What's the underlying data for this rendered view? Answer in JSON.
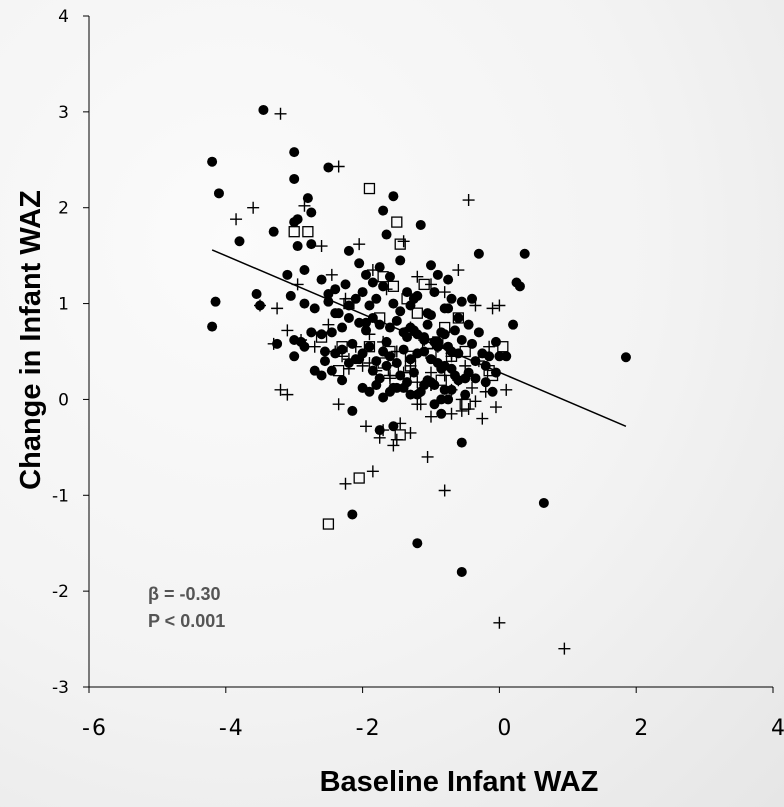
{
  "chart_data": {
    "type": "scatter",
    "title": "",
    "xlabel": "Baseline Infant WAZ",
    "ylabel": "Change in Infant WAZ",
    "xlim": [
      -6,
      4
    ],
    "ylim": [
      -3,
      4
    ],
    "xticks": [
      "-6",
      "-4",
      "-2",
      "0",
      "2",
      "4"
    ],
    "yticks": [
      "-3",
      "-2",
      "-1",
      "0",
      "1",
      "2",
      "3",
      "4"
    ],
    "grid": false,
    "legend": "none",
    "annotation": {
      "beta": "β = -0.30",
      "p": "P < 0.001"
    },
    "regression_line": {
      "x": [
        -4.2,
        1.85
      ],
      "y": [
        1.56,
        -0.28
      ]
    },
    "series": [
      {
        "marker": "filled-circle",
        "color": "#000000",
        "x": [
          -3.45,
          -2.5,
          -3.0,
          -3.0,
          -2.8,
          -2.5,
          -1.7,
          -1.55,
          -4.2,
          -4.1,
          -3.8,
          -2.75,
          -2.95,
          -3.0,
          -2.95,
          -2.75,
          -2.2,
          -2.05,
          -1.65,
          -1.75,
          -1.45,
          -1.15,
          -1.0,
          -0.75,
          -0.4,
          -0.3,
          0.25,
          0.3,
          0.37,
          -3.3,
          -3.1,
          -2.85,
          -2.6,
          -2.4,
          -2.25,
          -2.1,
          -1.95,
          -1.85,
          -1.6,
          -1.35,
          -1.25,
          -0.9,
          -0.75,
          -0.55,
          0.2,
          -3.55,
          -3.5,
          -3.05,
          -2.85,
          -2.7,
          -2.5,
          -2.35,
          -2.2,
          -2.0,
          -1.9,
          -1.8,
          -1.7,
          -1.55,
          -1.45,
          -1.3,
          -1.2,
          -1.05,
          -0.95,
          -0.8,
          -0.7,
          -0.6,
          -0.45,
          -0.3,
          -0.05,
          0.1,
          -4.15,
          -4.2,
          -3.0,
          -2.9,
          -2.75,
          -2.6,
          -2.45,
          -2.3,
          -2.15,
          -2.05,
          -1.95,
          -1.85,
          -1.75,
          -1.65,
          -1.5,
          -1.4,
          -1.3,
          -1.2,
          -1.1,
          -1.0,
          -0.9,
          -0.85,
          -0.75,
          -0.65,
          -0.55,
          -0.4,
          -0.25,
          -0.15,
          0.0,
          -3.25,
          -3.0,
          -2.85,
          -2.55,
          -2.4,
          -2.3,
          -2.1,
          -2.0,
          -1.9,
          -1.8,
          -1.7,
          -1.6,
          -1.5,
          -1.4,
          -1.3,
          -1.2,
          -1.1,
          -1.0,
          -0.9,
          -0.8,
          -0.7,
          -0.6,
          -0.5,
          -0.35,
          -0.2,
          -0.05,
          -2.6,
          -2.45,
          -2.2,
          -2.05,
          -1.85,
          -1.65,
          -1.45,
          -1.25,
          -1.05,
          -0.85,
          -0.65,
          -0.45,
          -0.2,
          -1.75,
          -1.55,
          -1.35,
          -1.15,
          -0.95,
          -0.8,
          -0.6,
          -0.5,
          -0.35,
          -2.0,
          -1.8,
          -1.6,
          -1.4,
          -1.2,
          -1.0,
          -0.85,
          -0.7,
          -1.9,
          -1.7,
          -1.5,
          -1.3,
          -1.1,
          -0.95,
          -0.75,
          -2.7,
          -2.55,
          -2.3,
          -2.15,
          -0.55,
          -0.1,
          -2.15,
          -1.2,
          -0.55,
          0.65,
          1.85,
          -1.75,
          -1.55,
          -0.85,
          -2.4,
          -2.2,
          -1.95,
          -1.6,
          -1.35,
          -1.1,
          -0.9,
          -0.7,
          -1.25,
          -1.05,
          -0.95,
          -0.8
        ],
        "y": [
          3.02,
          2.42,
          2.58,
          2.3,
          2.1,
          1.1,
          1.97,
          2.12,
          2.48,
          2.15,
          1.65,
          1.95,
          1.88,
          1.85,
          1.6,
          1.62,
          1.55,
          1.42,
          1.72,
          1.38,
          1.45,
          1.82,
          1.4,
          1.25,
          1.05,
          1.52,
          1.22,
          1.18,
          1.52,
          1.75,
          1.3,
          1.35,
          1.25,
          1.15,
          1.2,
          1.05,
          1.3,
          1.22,
          1.28,
          1.12,
          1.05,
          1.3,
          0.95,
          1.02,
          0.78,
          1.1,
          0.98,
          1.08,
          1.0,
          0.95,
          1.02,
          0.9,
          0.98,
          1.12,
          0.98,
          1.05,
          1.18,
          1.0,
          0.92,
          0.98,
          1.08,
          0.9,
          1.12,
          0.95,
          1.05,
          0.85,
          0.78,
          0.7,
          0.6,
          0.45,
          1.02,
          0.76,
          0.62,
          0.6,
          0.7,
          0.68,
          0.7,
          0.75,
          0.58,
          0.8,
          0.72,
          0.85,
          0.78,
          0.6,
          0.82,
          0.7,
          0.75,
          0.68,
          0.65,
          0.88,
          0.6,
          0.7,
          0.55,
          0.72,
          0.62,
          0.58,
          0.48,
          0.45,
          0.45,
          0.58,
          0.45,
          0.55,
          0.5,
          0.48,
          0.52,
          0.42,
          0.48,
          0.55,
          0.4,
          0.5,
          0.45,
          0.38,
          0.52,
          0.42,
          0.48,
          0.5,
          0.42,
          0.38,
          0.35,
          0.32,
          0.48,
          0.22,
          0.4,
          0.35,
          0.28,
          0.25,
          0.3,
          0.38,
          0.42,
          0.3,
          0.35,
          0.25,
          0.28,
          0.2,
          0.32,
          0.25,
          0.28,
          0.18,
          0.22,
          0.12,
          0.18,
          0.08,
          0.15,
          0.1,
          0.2,
          0.05,
          0.22,
          0.12,
          0.15,
          0.08,
          0.12,
          0.05,
          0.18,
          0.0,
          0.1,
          0.08,
          0.02,
          0.12,
          0.05,
          0.15,
          -0.05,
          0.0,
          0.3,
          0.4,
          0.2,
          -0.12,
          -0.45,
          0.08,
          -1.2,
          -1.5,
          -1.8,
          -1.08,
          0.44,
          -0.32,
          -0.28,
          -0.15,
          0.9,
          0.85,
          0.8,
          0.75,
          0.65,
          0.62,
          0.55,
          0.5,
          0.72,
          0.78,
          0.6,
          0.68
        ]
      },
      {
        "marker": "open-square",
        "color": "#000000",
        "x": [
          -1.9,
          -1.5,
          -1.45,
          -3.0,
          -2.8,
          -2.2,
          -1.7,
          -1.55,
          -1.35,
          -1.1,
          -0.6,
          -1.75,
          -1.2,
          -0.8,
          -2.6,
          -2.3,
          -1.9,
          -1.6,
          -1.3,
          -1.0,
          -0.7,
          -0.5,
          -0.1,
          -2.35,
          -1.55,
          -0.85,
          0.05,
          -0.15,
          -0.5,
          -1.45,
          -2.05,
          -2.5,
          -1.3,
          -0.9,
          -1.7,
          -1.05
        ],
        "y": [
          2.2,
          1.85,
          1.62,
          1.75,
          1.75,
          1.0,
          1.28,
          1.18,
          1.05,
          1.2,
          0.85,
          0.85,
          0.9,
          0.75,
          0.65,
          0.55,
          0.55,
          0.5,
          0.45,
          0.48,
          0.45,
          0.5,
          0.25,
          0.3,
          0.3,
          0.2,
          0.55,
          0.3,
          -0.05,
          -0.37,
          -0.82,
          -1.3,
          0.35,
          0.6,
          0.38,
          0.58
        ]
      },
      {
        "marker": "plus",
        "color": "#000000",
        "x": [
          -3.2,
          -2.35,
          -3.85,
          -3.6,
          -2.85,
          -2.6,
          -0.45,
          -3.25,
          -3.5,
          -2.95,
          -2.45,
          -2.25,
          -2.05,
          -1.85,
          -1.65,
          -1.4,
          -1.2,
          -1.0,
          -0.8,
          -0.6,
          -0.35,
          -0.1,
          0.0,
          -3.3,
          -3.1,
          -2.9,
          -2.7,
          -2.5,
          -2.3,
          -2.1,
          -1.9,
          -1.7,
          -1.5,
          -1.3,
          -1.1,
          -0.9,
          -0.7,
          -0.5,
          -0.3,
          -0.15,
          -3.2,
          -3.1,
          -2.4,
          -2.2,
          -2.0,
          -1.8,
          -1.6,
          -1.4,
          -1.2,
          -1.0,
          -0.8,
          -0.6,
          -0.4,
          -0.2,
          0.1,
          -2.2,
          -1.9,
          -1.6,
          -1.3,
          -1.0,
          -0.7,
          -1.85,
          -1.55,
          -1.3,
          -1.05,
          -0.8,
          -0.55,
          -2.25,
          -1.95,
          -1.75,
          -1.45,
          -1.15,
          -1.0,
          -0.7,
          -0.45,
          -0.25,
          -0.05,
          -2.35,
          -1.7,
          -1.5,
          -1.2,
          -0.35,
          -0.55,
          -1.3,
          -1.0,
          -0.7,
          0.0,
          0.95
        ],
        "y": [
          2.98,
          2.43,
          1.88,
          2.0,
          2.02,
          1.6,
          2.08,
          0.95,
          0.98,
          1.2,
          1.3,
          1.05,
          1.62,
          1.35,
          1.15,
          1.65,
          1.28,
          1.2,
          1.12,
          1.35,
          0.98,
          0.95,
          0.98,
          0.58,
          0.72,
          0.62,
          0.55,
          0.78,
          0.45,
          0.55,
          0.68,
          0.6,
          0.5,
          0.75,
          0.62,
          0.55,
          0.45,
          0.35,
          0.4,
          0.55,
          0.1,
          0.05,
          0.5,
          0.42,
          0.35,
          0.3,
          0.22,
          0.28,
          0.18,
          0.15,
          0.25,
          0.2,
          0.12,
          0.08,
          0.1,
          0.32,
          0.38,
          0.25,
          0.28,
          0.15,
          0.1,
          -0.75,
          -0.48,
          -0.35,
          -0.6,
          -0.95,
          0.0,
          -0.88,
          -0.28,
          -0.4,
          -0.25,
          -0.05,
          -0.18,
          -0.15,
          -0.1,
          -0.2,
          -0.08,
          -0.05,
          -0.32,
          -0.42,
          -0.05,
          -0.02,
          -0.12,
          0.35,
          0.28,
          0.48,
          -2.33,
          -2.6
        ]
      }
    ]
  }
}
